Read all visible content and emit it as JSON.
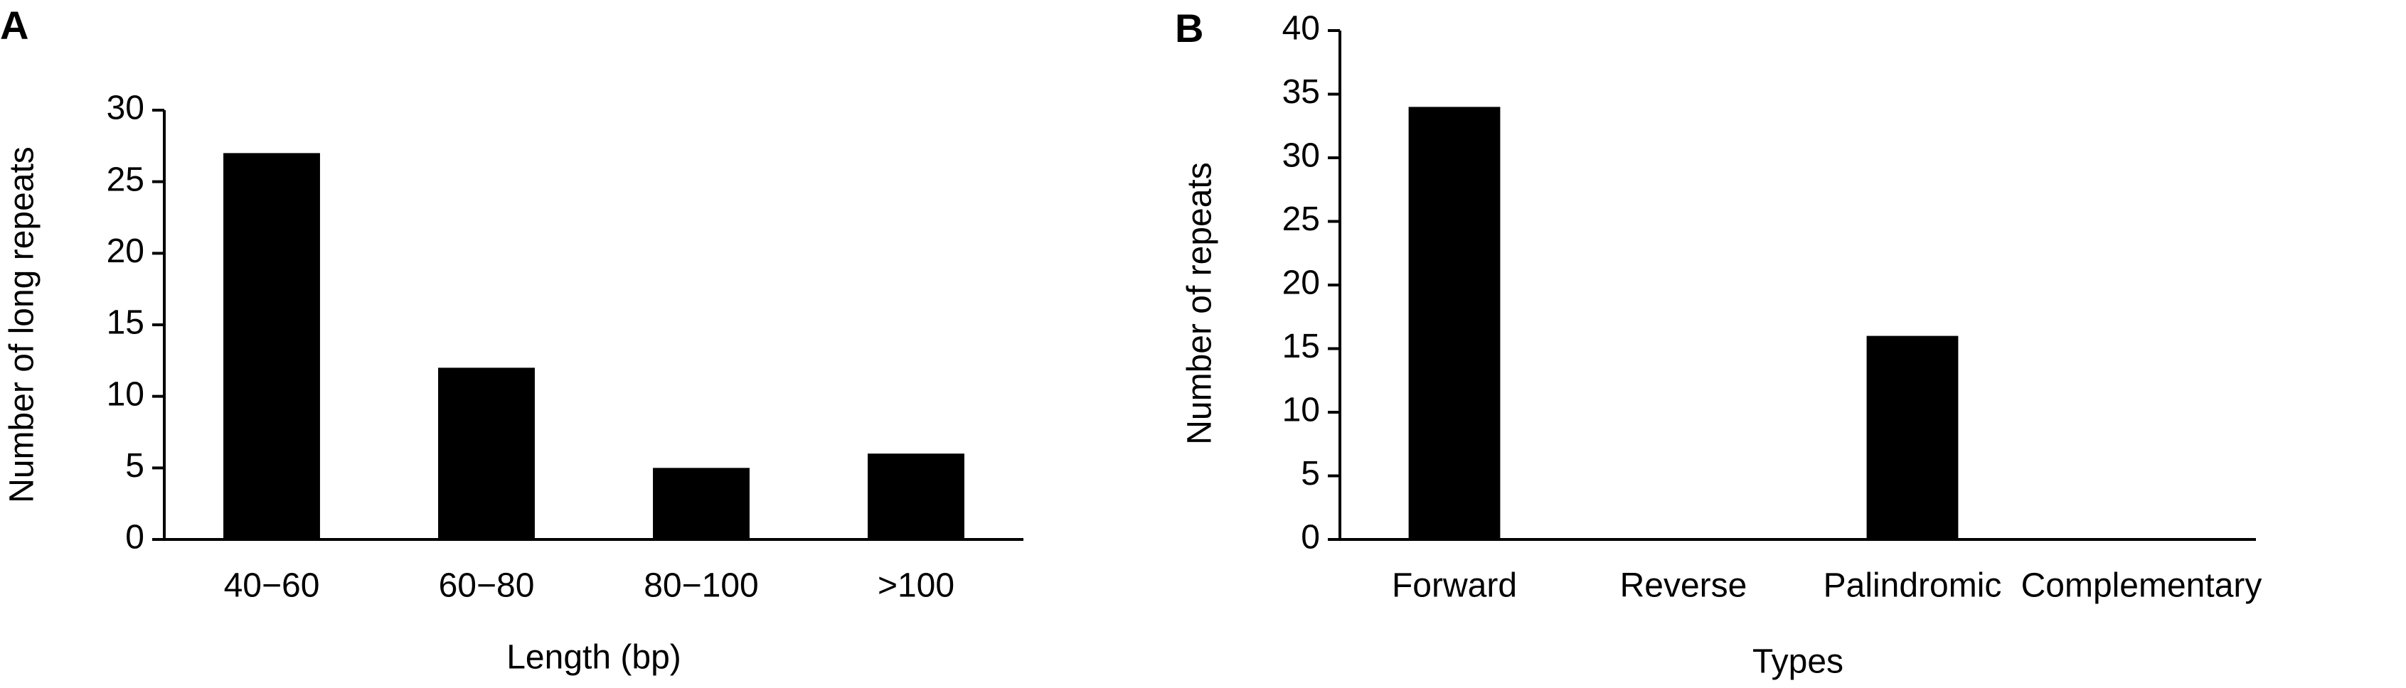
{
  "chart_data": [
    {
      "type": "bar",
      "panel": "A",
      "categories": [
        "40−60",
        "60−80",
        "80−100",
        ">100"
      ],
      "values": [
        27,
        12,
        5,
        6
      ],
      "color": "#000000",
      "ylim": [
        0,
        30
      ],
      "yticks": [
        0,
        5,
        10,
        15,
        20,
        25,
        30
      ],
      "y_label": "Number of long repeats",
      "x_label": "Length (bp)"
    },
    {
      "type": "bar",
      "panel": "B",
      "categories": [
        "Forward",
        "Reverse",
        "Palindromic",
        "Complementary"
      ],
      "values": [
        34,
        0,
        16,
        0
      ],
      "color": "#000000",
      "ylim": [
        0,
        40
      ],
      "yticks": [
        0,
        5,
        10,
        15,
        20,
        25,
        30,
        35,
        40
      ],
      "y_label": "Number of repeats",
      "x_label": "Types"
    }
  ]
}
